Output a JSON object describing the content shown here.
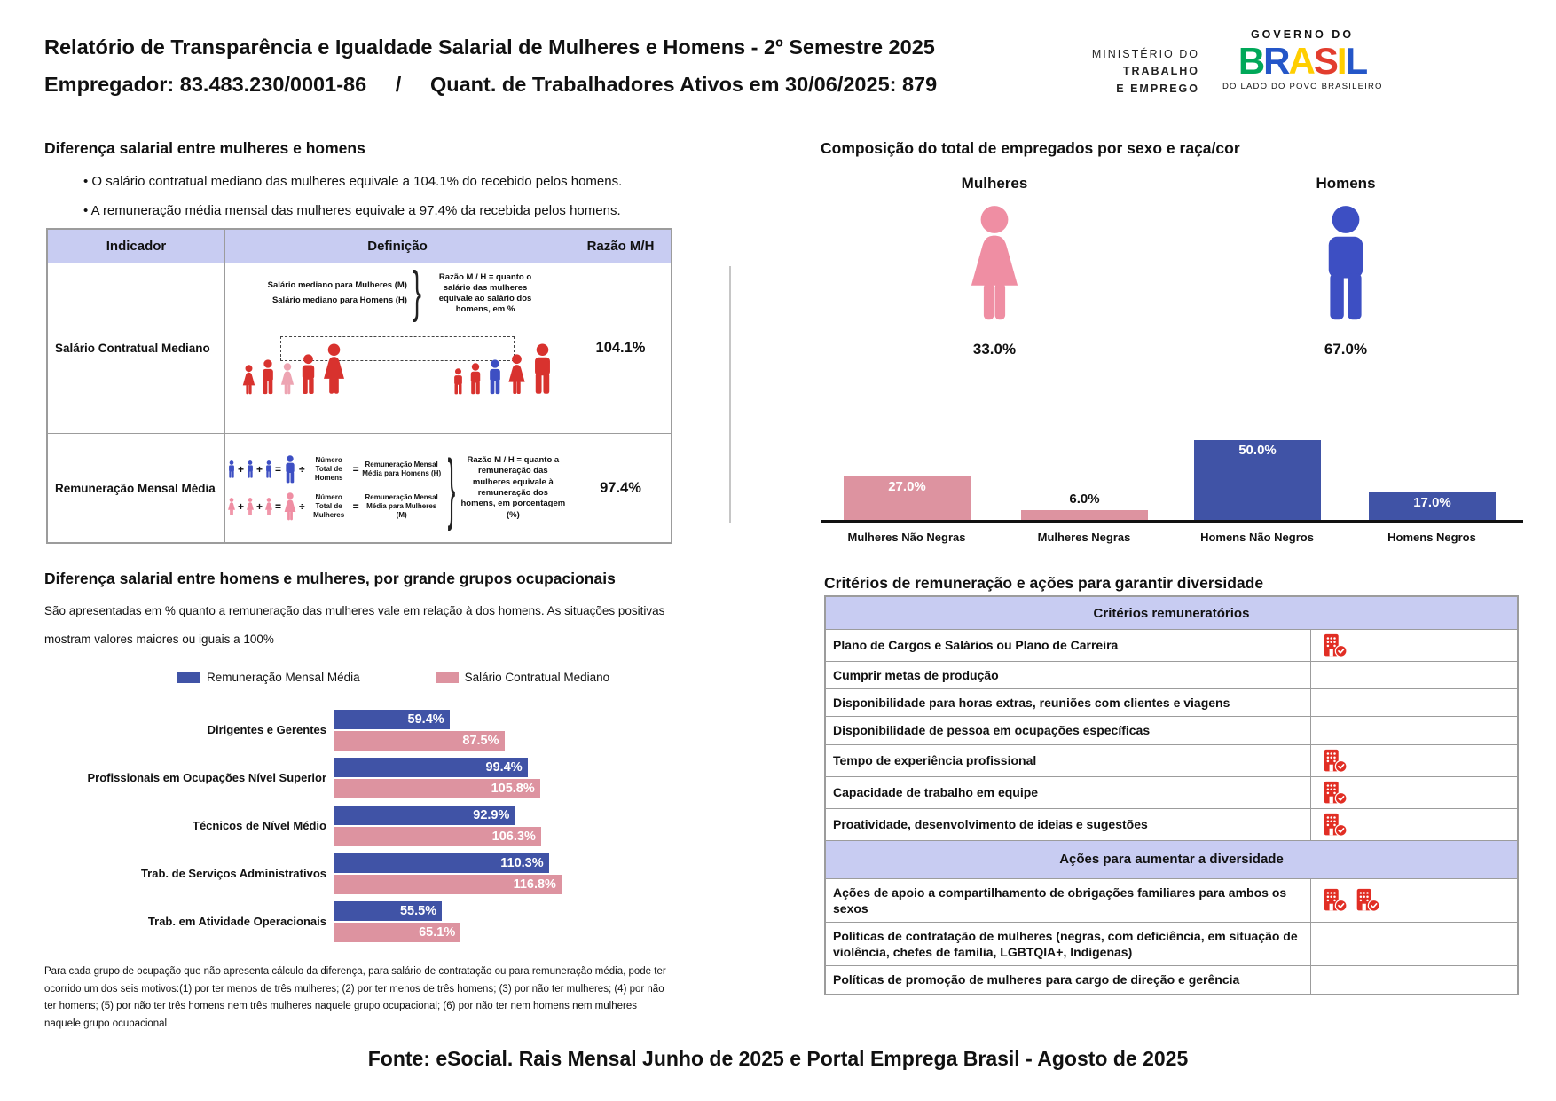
{
  "header": {
    "title": "Relatório de Transparência e Igualdade Salarial de Mulheres e Homens - 2º Semestre 2025",
    "subtitle": "Empregador: 83.483.230/0001-86     /     Quant. de Trabalhadores Ativos em 30/06/2025: 879",
    "ministry": [
      "MINISTÉRIO DO",
      "TRABALHO",
      "E EMPREGO"
    ],
    "gov_logo": {
      "top": "GOVERNO DO",
      "word": "BRASIL",
      "tagline": "DO LADO DO POVO BRASILEIRO"
    }
  },
  "salary_diff": {
    "title": "Diferença salarial entre mulheres e homens",
    "bullets": [
      "O salário contratual mediano das mulheres equivale a 104.1% do recebido pelos homens.",
      "A remuneração média mensal das mulheres equivale a 97.4% da recebida pelos homens."
    ],
    "table": {
      "headers": [
        "Indicador",
        "Definição",
        "Razão M/H"
      ],
      "rows": [
        {
          "indicator": "Salário Contratual Mediano",
          "ratio": "104.1%"
        },
        {
          "indicator": "Remuneração Mensal Média",
          "ratio": "97.4%"
        }
      ]
    },
    "def1": {
      "line_m": "Salário mediano para Mulheres (M)",
      "line_h": "Salário mediano para Homens (H)",
      "note": "Razão M / H = quanto o salário das mulheres equivale ao salário dos homens, em %"
    },
    "def2": {
      "rows": [
        {
          "num_label": "Número Total de Homens",
          "rem_label": "Remuneração Mensal Média para Homens (H)"
        },
        {
          "num_label": "Número Total de Mulheres",
          "rem_label": "Remuneração Mensal Média para Mulheres (M)"
        }
      ],
      "note": "Razão M / H = quanto a remuneração das mulheres equivale à remuneração dos homens, em porcentagem (%)"
    }
  },
  "composition": {
    "title": "Composição do total de empregados por sexo e raça/cor",
    "female_label": "Mulheres",
    "female_pct": "33.0%",
    "male_label": "Homens",
    "male_pct": "67.0%"
  },
  "occupational": {
    "title": "Diferença salarial entre homens e mulheres, por grande grupos ocupacionais",
    "subtitle1": "São apresentadas em % quanto a remuneração das mulheres vale em relação à dos homens. As situações positivas",
    "subtitle2": "mostram valores maiores ou iguais a 100%",
    "footnote": "Para cada grupo de ocupação que não apresenta cálculo da diferença, para salário de contratação ou para remuneração média, pode ter ocorrido um dos seis motivos:(1) por ter menos de três mulheres; (2) por ter menos de três homens; (3) por não ter mulheres; (4) por não ter homens; (5) por não ter três homens nem três mulheres naquele grupo ocupacional; (6) por não ter nem homens nem mulheres naquele grupo ocupacional"
  },
  "criteria": {
    "title": "Critérios de remuneração e ações para garantir diversidade",
    "section1": "Critérios remuneratórios",
    "section2": "Ações para aumentar a diversidade",
    "rows": [
      {
        "label": "Plano de Cargos e Salários ou Plano de Carreira",
        "checks": 1
      },
      {
        "label": "Cumprir metas de produção",
        "checks": 0
      },
      {
        "label": "Disponibilidade para horas extras, reuniões com clientes e viagens",
        "checks": 0
      },
      {
        "label": "Disponibilidade de pessoa em ocupações específicas",
        "checks": 0
      },
      {
        "label": "Tempo de experiência profissional",
        "checks": 1
      },
      {
        "label": "Capacidade de trabalho em equipe",
        "checks": 1
      },
      {
        "label": "Proatividade, desenvolvimento de ideias e sugestões",
        "checks": 1
      }
    ],
    "actions_rows": [
      {
        "label": "Ações de apoio a compartilhamento de obrigações familiares para ambos os sexos",
        "checks": 2
      },
      {
        "label": "Políticas de contratação de mulheres (negras, com deficiência, em situação de violência, chefes de família, LGBTQIA+, Indígenas)",
        "checks": 0
      },
      {
        "label": "Políticas de promoção de mulheres para cargo de direção e gerência",
        "checks": 0
      }
    ]
  },
  "footer": "Fonte: eSocial. Rais Mensal Junho de 2025 e Portal Emprega Brasil - Agosto de 2025",
  "colors": {
    "lavender": "#c8ccf2",
    "bar_blue": "#4053a6",
    "bar_pink": "#dd93a0",
    "picto_pink": "#ef8ea3",
    "picto_blue": "#3d4fc3",
    "fig_red": "#d8322e",
    "fig_lightpink": "#eda4b2",
    "red_icon": "#e12e24",
    "brasil_letters": [
      "#00a859",
      "#2456c8",
      "#ffce00",
      "#e23d2e",
      "#ffce00",
      "#2456c8"
    ]
  },
  "chart_data": [
    {
      "type": "pictogram",
      "title": "Composição do total de empregados por sexo e raça/cor",
      "categories": [
        "Mulheres",
        "Homens"
      ],
      "values": [
        33.0,
        67.0
      ],
      "unit": "%"
    },
    {
      "type": "bar",
      "categories": [
        "Mulheres Não Negras",
        "Mulheres Negras",
        "Homens Não Negros",
        "Homens Negros"
      ],
      "values": [
        27.0,
        6.0,
        50.0,
        17.0
      ],
      "unit": "%",
      "bar_colors": [
        "#dd93a0",
        "#dd93a0",
        "#4053a6",
        "#4053a6"
      ],
      "ylim": [
        0,
        50
      ],
      "grid": false
    },
    {
      "type": "bar",
      "orientation": "horizontal",
      "title": "Diferença salarial entre homens e mulheres, por grande grupos ocupacionais",
      "categories": [
        "Dirigentes e Gerentes",
        "Profissionais em Ocupações Nível Superior",
        "Técnicos de Nível Médio",
        "Trab. de Serviços Administrativos",
        "Trab. em Atividade Operacionais"
      ],
      "series": [
        {
          "name": "Remuneração Mensal Média",
          "color": "#4053a6",
          "values": [
            59.4,
            99.4,
            92.9,
            110.3,
            55.5
          ]
        },
        {
          "name": "Salário Contratual Mediano",
          "color": "#dd93a0",
          "values": [
            87.5,
            105.8,
            106.3,
            116.8,
            65.1
          ]
        }
      ],
      "unit": "%",
      "xlim": [
        0,
        120
      ],
      "legend_position": "top"
    }
  ]
}
